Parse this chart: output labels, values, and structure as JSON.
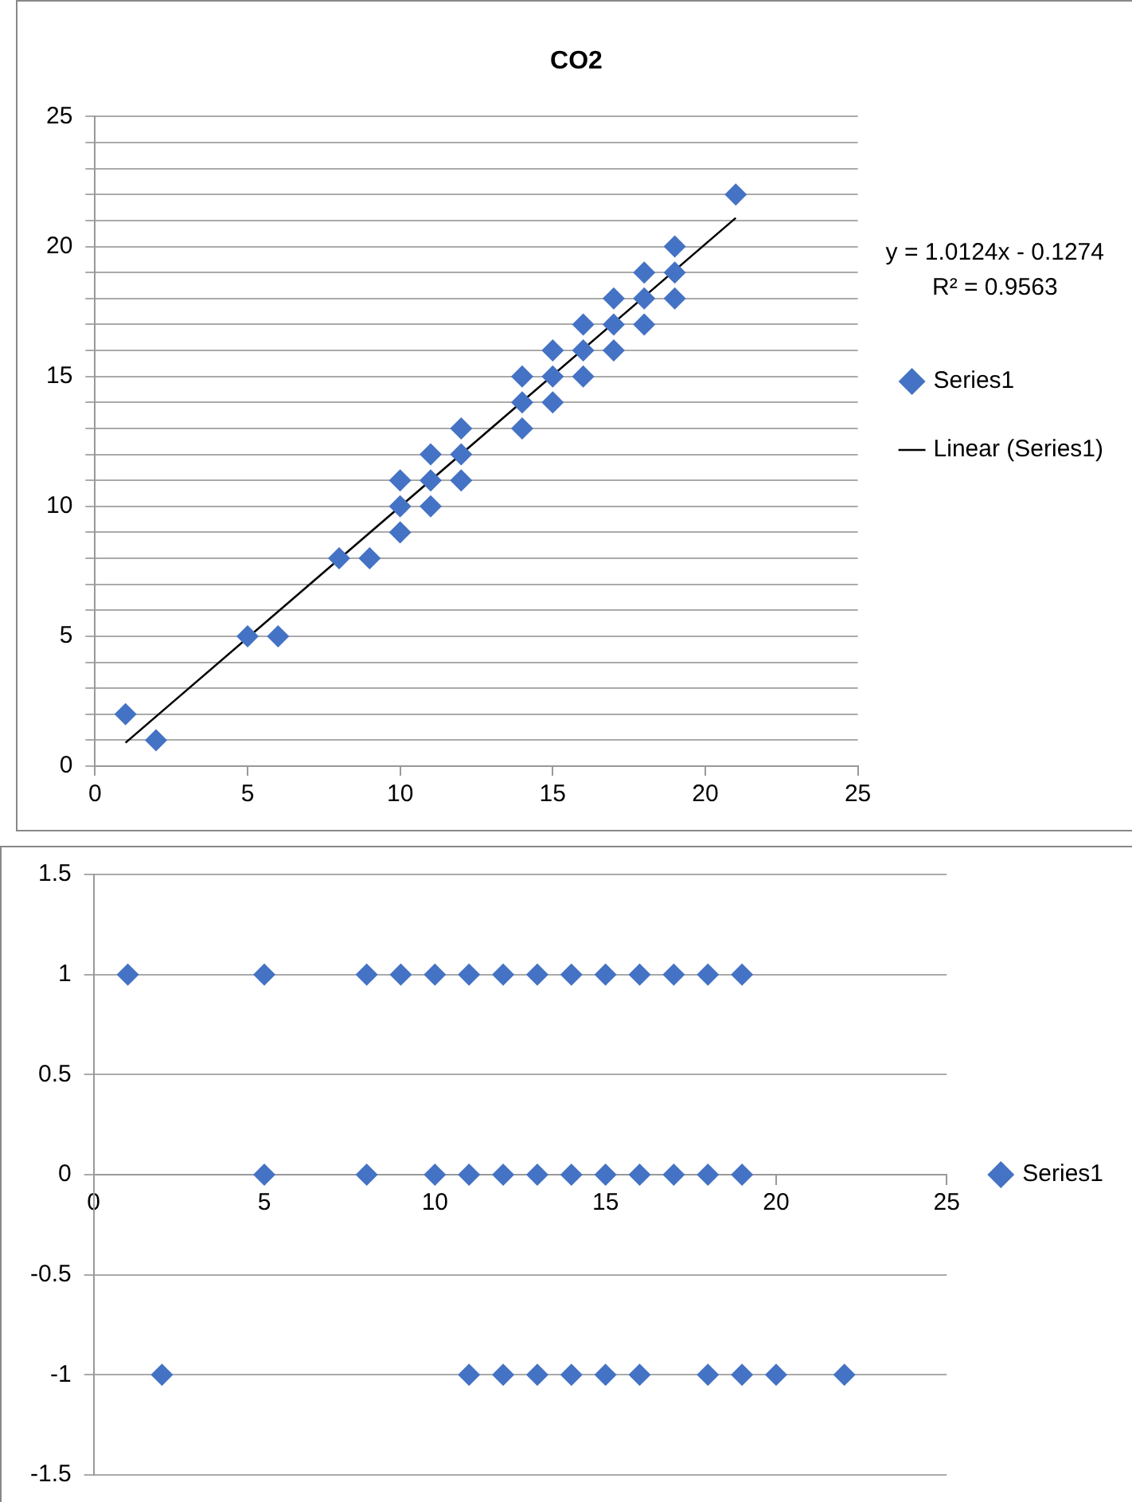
{
  "chart_data": [
    {
      "type": "scatter",
      "title": "CO2",
      "marker": "diamond",
      "grid": "y",
      "legend": "right",
      "xlim": [
        0,
        25
      ],
      "xticks": [
        0,
        5,
        10,
        15,
        20,
        25
      ],
      "ylim": [
        0,
        25
      ],
      "yticks": [
        0,
        {
          "value": 1,
          "label": null
        },
        {
          "value": 2,
          "label": null
        },
        {
          "value": 3,
          "label": null
        },
        {
          "value": 4,
          "label": null
        },
        5,
        {
          "value": 6,
          "label": null
        },
        {
          "value": 7,
          "label": null
        },
        {
          "value": 8,
          "label": null
        },
        {
          "value": 9,
          "label": null
        },
        10,
        {
          "value": 11,
          "label": null
        },
        {
          "value": 12,
          "label": null
        },
        {
          "value": 13,
          "label": null
        },
        {
          "value": 14,
          "label": null
        },
        15,
        {
          "value": 16,
          "label": null
        },
        {
          "value": 17,
          "label": null
        },
        {
          "value": 18,
          "label": null
        },
        {
          "value": 19,
          "label": null
        },
        20,
        {
          "value": 21,
          "label": null
        },
        {
          "value": 22,
          "label": null
        },
        {
          "value": 23,
          "label": null
        },
        {
          "value": 24,
          "label": null
        },
        25
      ],
      "annotations": [
        "y = 1.0124x - 0.1274",
        "R² = 0.9563"
      ],
      "series": [
        {
          "name": "Series1",
          "type": "scatter",
          "color": "#4472c4",
          "x": [
            1,
            2,
            5,
            6,
            8,
            9,
            10,
            10,
            10,
            11,
            11,
            11,
            12,
            12,
            12,
            14,
            14,
            14,
            15,
            15,
            15,
            16,
            16,
            16,
            17,
            17,
            17,
            18,
            18,
            18,
            19,
            19,
            19,
            21
          ],
          "values": [
            2,
            1,
            5,
            5,
            8,
            8,
            9,
            10,
            11,
            10,
            11,
            12,
            11,
            12,
            13,
            13,
            14,
            15,
            14,
            15,
            16,
            15,
            16,
            17,
            16,
            17,
            18,
            17,
            18,
            19,
            18,
            19,
            20,
            22
          ]
        },
        {
          "name": "Linear (Series1)",
          "type": "line",
          "color": "#000000",
          "marker": "none",
          "x": [
            1,
            21
          ],
          "values": [
            0.9,
            21.1
          ]
        }
      ]
    },
    {
      "type": "scatter",
      "marker": "diamond",
      "grid": "y",
      "legend": "right",
      "xlim": [
        0,
        25
      ],
      "xticks": [
        0,
        5,
        10,
        15,
        20,
        25
      ],
      "ylim": [
        -1.5,
        1.5
      ],
      "yticks": [
        -1.5,
        -1,
        -0.5,
        0,
        0.5,
        1,
        1.5
      ],
      "series": [
        {
          "name": "Series1",
          "color": "#4472c4",
          "x": [
            1,
            5,
            8,
            9,
            10,
            11,
            12,
            13,
            14,
            15,
            16,
            17,
            18,
            19,
            5,
            8,
            10,
            11,
            12,
            13,
            14,
            15,
            16,
            17,
            18,
            19,
            2,
            11,
            12,
            13,
            14,
            15,
            16,
            18,
            19,
            20,
            22
          ],
          "values": [
            1,
            1,
            1,
            1,
            1,
            1,
            1,
            1,
            1,
            1,
            1,
            1,
            1,
            1,
            0,
            0,
            0,
            0,
            0,
            0,
            0,
            0,
            0,
            0,
            0,
            0,
            -1,
            -1,
            -1,
            -1,
            -1,
            -1,
            -1,
            -1,
            -1,
            -1,
            -1
          ]
        }
      ]
    }
  ]
}
